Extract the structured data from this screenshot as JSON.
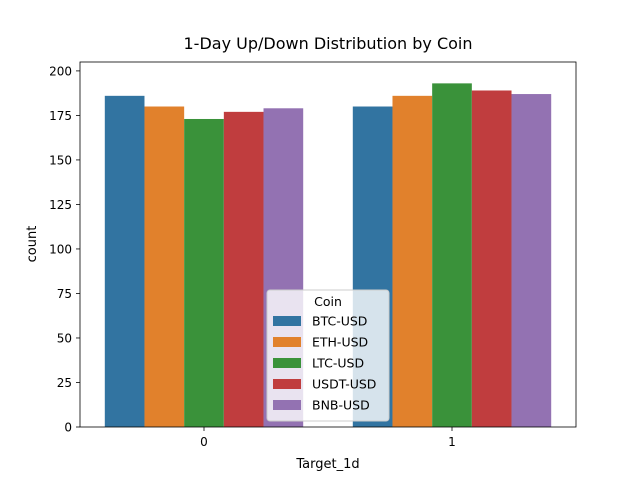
{
  "chart_data": {
    "type": "bar",
    "title": "1-Day Up/Down Distribution by Coin",
    "xlabel": "Target_1d",
    "ylabel": "count",
    "categories": [
      "0",
      "1"
    ],
    "ylim": [
      0,
      205
    ],
    "yticks": [
      0,
      25,
      50,
      75,
      100,
      125,
      150,
      175,
      200
    ],
    "grid": false,
    "legend": {
      "title": "Coin",
      "placement": "bottom-center"
    },
    "series": [
      {
        "name": "BTC-USD",
        "color": "#3274a1",
        "values": [
          186,
          180
        ]
      },
      {
        "name": "ETH-USD",
        "color": "#e1812c",
        "values": [
          180,
          186
        ]
      },
      {
        "name": "LTC-USD",
        "color": "#3a923a",
        "values": [
          173,
          193
        ]
      },
      {
        "name": "USDT-USD",
        "color": "#c03d3e",
        "values": [
          177,
          189
        ]
      },
      {
        "name": "BNB-USD",
        "color": "#9372b2",
        "values": [
          179,
          187
        ]
      }
    ]
  }
}
